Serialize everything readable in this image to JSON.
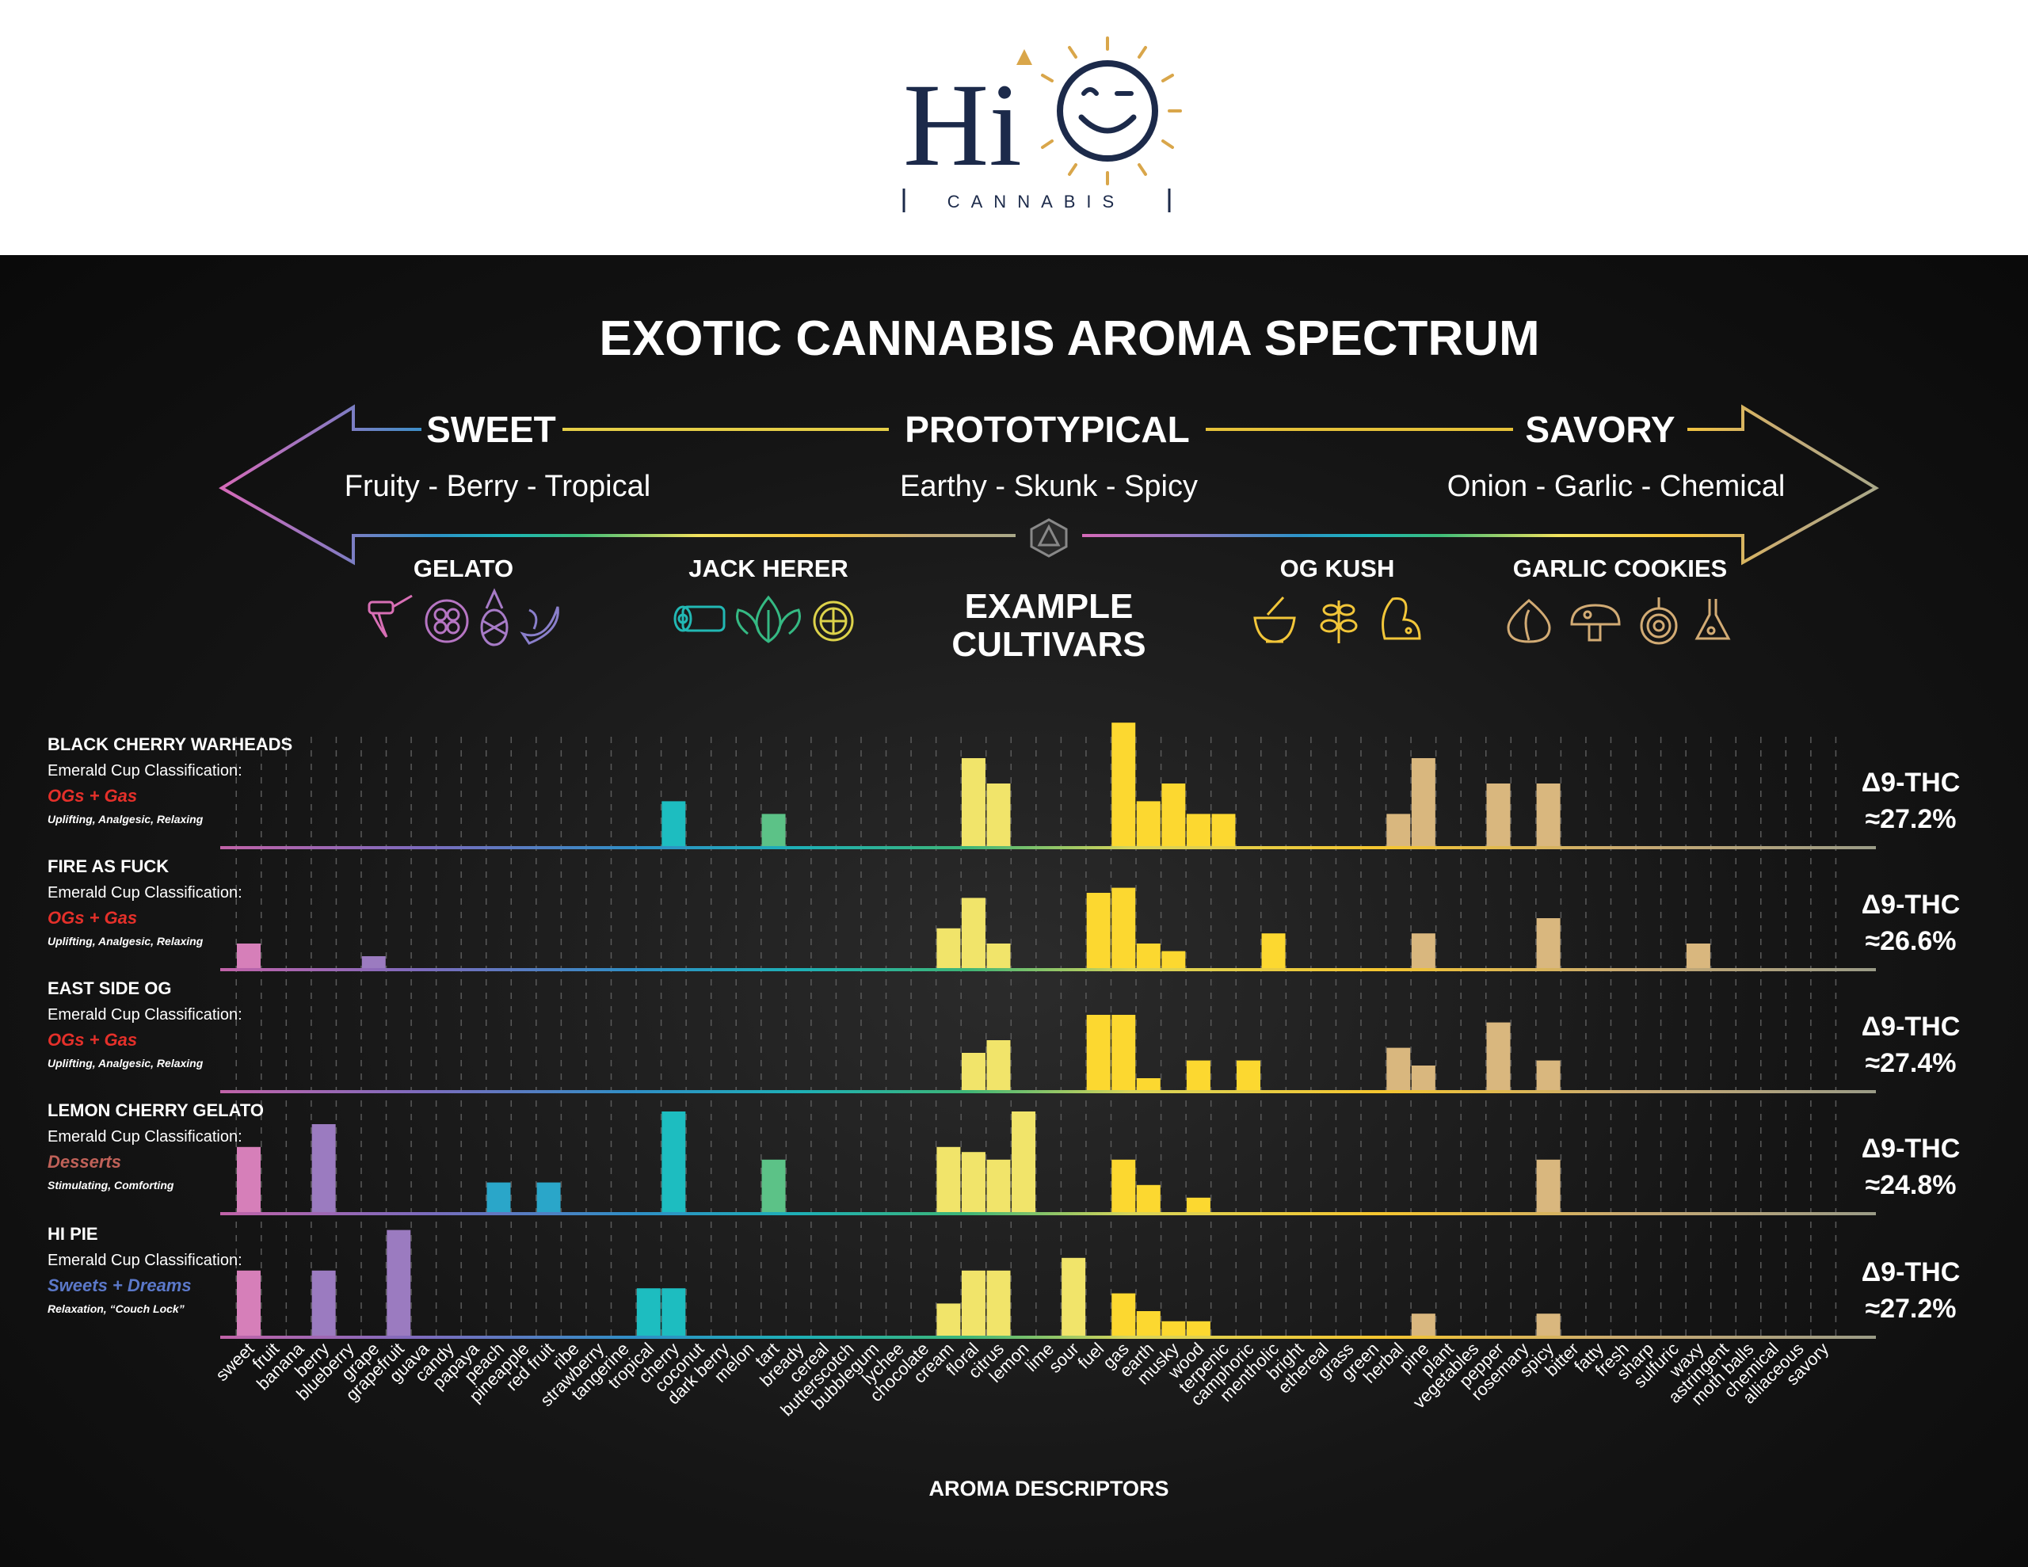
{
  "logo": {
    "brand": "Hi",
    "subtitle": "CANNABIS"
  },
  "infographic": {
    "title": "EXOTIC CANNABIS AROMA SPECTRUM",
    "spectrum": [
      {
        "label": "SWEET",
        "desc": "Fruity - Berry - Tropical"
      },
      {
        "label": "PROTOTYPICAL",
        "desc": "Earthy - Skunk - Spicy"
      },
      {
        "label": "SAVORY",
        "desc": "Onion - Garlic - Chemical"
      }
    ],
    "example_cultivars_label": [
      "EXAMPLE",
      "CULTIVARS"
    ],
    "cultivars": [
      {
        "name": "GELATO",
        "icons": [
          "honey-dipper-icon",
          "raspberry-icon",
          "pineapple-icon",
          "banana-icon"
        ]
      },
      {
        "name": "JACK HERER",
        "icons": [
          "log-icon",
          "leaf-icon",
          "lemon-slice-icon"
        ]
      },
      {
        "name": "OG KUSH",
        "icons": [
          "mortar-pestle-icon",
          "herb-icon",
          "skunk-icon"
        ]
      },
      {
        "name": "GARLIC COOKIES",
        "icons": [
          "garlic-icon",
          "mushroom-icon",
          "onion-icon",
          "flask-icon"
        ]
      }
    ],
    "colors": {
      "pink": "#d67fb9",
      "purple": "#9b7bc0",
      "blue": "#2aa6c9",
      "teal": "#1dbdc0",
      "green": "#5cc287",
      "yellow_light": "#f1e46a",
      "yellow": "#fcd830",
      "tan": "#d9b77e"
    }
  },
  "chart_data": {
    "type": "bar",
    "xlabel": "AROMA DESCRIPTORS",
    "ylabel": "",
    "categories": [
      "sweet",
      "fruit",
      "banana",
      "berry",
      "blueberry",
      "grape",
      "grapefruit",
      "guava",
      "candy",
      "papaya",
      "peach",
      "pineapple",
      "red fruit",
      "ribe",
      "strawberry",
      "tangerine",
      "tropical",
      "cherry",
      "coconut",
      "dark berry",
      "melon",
      "tart",
      "bready",
      "cereal",
      "butterscotch",
      "bubblegum",
      "lychee",
      "chocolate",
      "cream",
      "floral",
      "citrus",
      "lemon",
      "lime",
      "sour",
      "fuel",
      "gas",
      "earth",
      "musky",
      "wood",
      "terpenic",
      "camphoric",
      "mentholic",
      "bright",
      "ethereal",
      "grass",
      "green",
      "herbal",
      "pine",
      "plant",
      "vegetables",
      "pepper",
      "rosemary",
      "spicy",
      "bitter",
      "fatty",
      "fresh",
      "sharp",
      "sulfuric",
      "waxy",
      "astringent",
      "moth balls",
      "chemical",
      "alliaceous",
      "savory"
    ],
    "ylim": [
      0,
      5
    ],
    "series": [
      {
        "name": "BLACK CHERRY WARHEADS",
        "classification_label": "Emerald Cup Classification:",
        "classification": "OGs + Gas",
        "effects": "Uplifting, Analgesic, Relaxing",
        "thc": [
          "Δ9-THC",
          "≈27.2%"
        ],
        "values": {
          "cherry": 1.8,
          "tart": 1.3,
          "floral": 3.5,
          "citrus": 2.5,
          "gas": 4.9,
          "earth": 1.8,
          "musky": 2.5,
          "wood": 1.3,
          "terpenic": 1.3,
          "herbal": 1.3,
          "pine": 3.5,
          "pepper": 2.5,
          "spicy": 2.5
        }
      },
      {
        "name": "FIRE AS FUCK",
        "classification_label": "Emerald Cup Classification:",
        "classification": "OGs + Gas",
        "effects": "Uplifting, Analgesic, Relaxing",
        "thc": [
          "Δ9-THC",
          "≈26.6%"
        ],
        "values": {
          "sweet": 1.0,
          "grape": 0.5,
          "cream": 1.6,
          "floral": 2.8,
          "citrus": 1.0,
          "fuel": 3.0,
          "gas": 3.2,
          "earth": 1.0,
          "musky": 0.7,
          "mentholic": 1.4,
          "pine": 1.4,
          "spicy": 2.0,
          "waxy": 1.0
        }
      },
      {
        "name": "EAST SIDE OG",
        "classification_label": "Emerald Cup Classification:",
        "classification": "OGs + Gas",
        "effects": "Uplifting, Analgesic, Relaxing",
        "thc": [
          "Δ9-THC",
          "≈27.4%"
        ],
        "values": {
          "floral": 1.5,
          "citrus": 2.0,
          "fuel": 3.0,
          "gas": 3.0,
          "earth": 0.5,
          "wood": 1.2,
          "camphoric": 1.2,
          "herbal": 1.7,
          "pine": 1.0,
          "pepper": 2.7,
          "spicy": 1.2
        }
      },
      {
        "name": "LEMON CHERRY GELATO",
        "classification_label": "Emerald Cup Classification:",
        "classification": "Desserts",
        "effects": "Stimulating, Comforting",
        "thc": [
          "Δ9-THC",
          "≈24.8%"
        ],
        "values": {
          "sweet": 2.6,
          "berry": 3.5,
          "peach": 1.2,
          "red fruit": 1.2,
          "cherry": 4.0,
          "tart": 2.1,
          "cream": 2.6,
          "floral": 2.4,
          "citrus": 2.1,
          "lemon": 4.0,
          "gas": 2.1,
          "earth": 1.1,
          "wood": 0.6,
          "spicy": 2.1
        }
      },
      {
        "name": "HI PIE",
        "classification_label": "Emerald Cup Classification:",
        "classification": "Sweets + Dreams",
        "effects": "Relaxation, “Couch Lock”",
        "thc": [
          "Δ9-THC",
          "≈27.2%"
        ],
        "values": {
          "sweet": 2.6,
          "berry": 2.6,
          "grapefruit": 4.2,
          "tropical": 1.9,
          "cherry": 1.9,
          "cream": 1.3,
          "floral": 2.6,
          "citrus": 2.6,
          "sour": 3.1,
          "gas": 1.7,
          "earth": 1.0,
          "musky": 0.6,
          "wood": 0.6,
          "pine": 0.9,
          "spicy": 0.9
        }
      }
    ]
  }
}
